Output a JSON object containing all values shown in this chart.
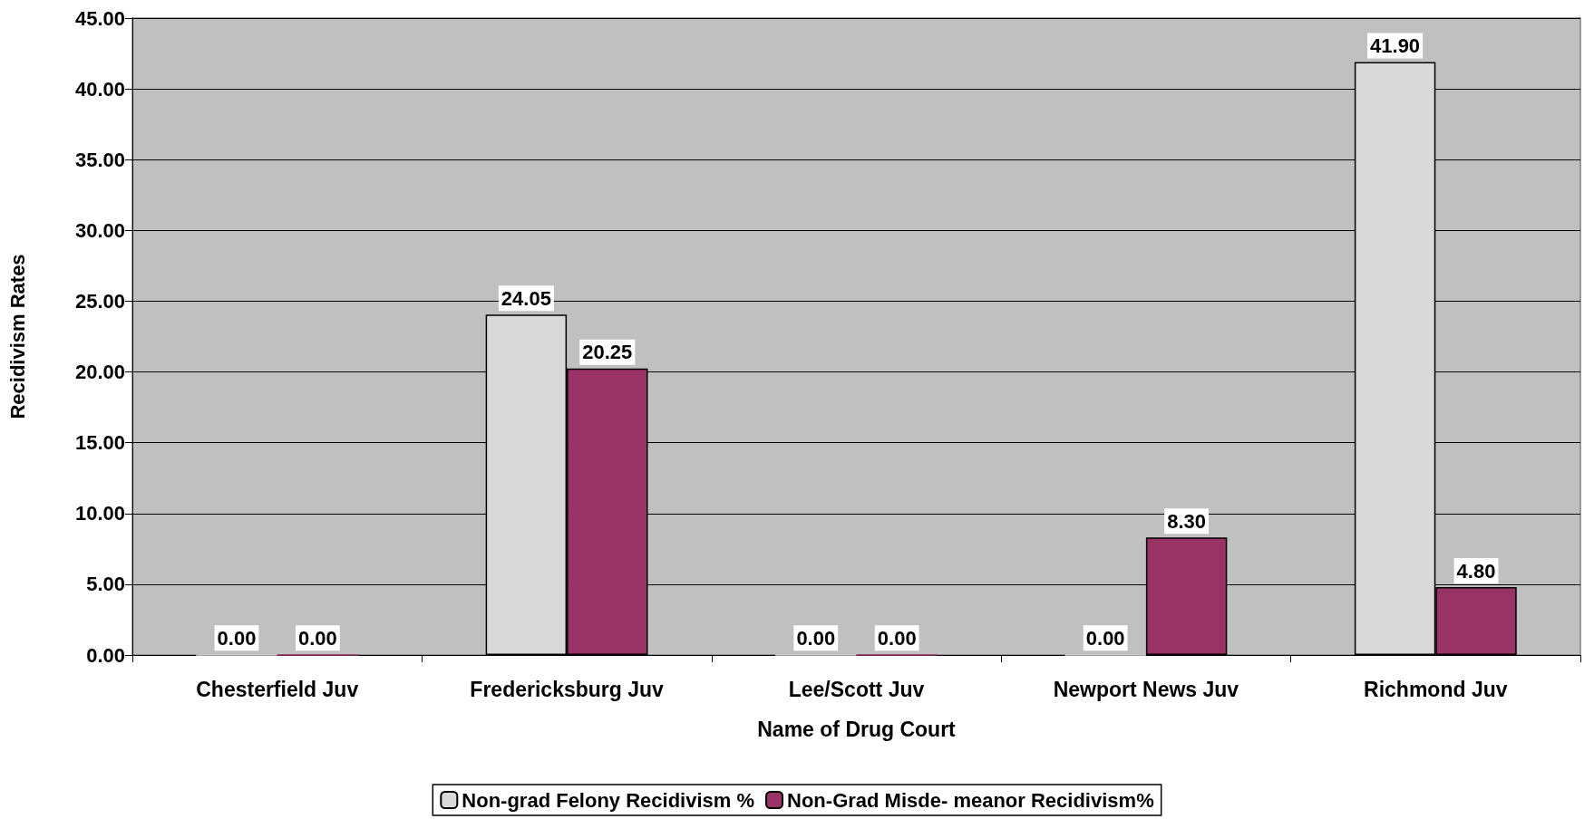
{
  "chart_data": {
    "type": "bar",
    "xlabel": "Name of Drug Court",
    "ylabel": "Recidivism Rates",
    "categories": [
      "Chesterfield Juv",
      "Fredericksburg Juv",
      "Lee/Scott Juv",
      "Newport News Juv",
      "Richmond Juv"
    ],
    "series": [
      {
        "name": "Non-grad Felony Recidivism %",
        "color": "#d9d9d9",
        "values": [
          0,
          24.05,
          0,
          0,
          41.9
        ],
        "value_labels": [
          "0.00",
          "24.05",
          "0.00",
          "0.00",
          "41.90"
        ]
      },
      {
        "name": "Non-Grad Misde- meanor Recidivism%",
        "color": "#993366",
        "values": [
          0,
          20.25,
          0,
          8.3,
          4.8
        ],
        "value_labels": [
          "0.00",
          "20.25",
          "0.00",
          "8.30",
          "4.80"
        ]
      }
    ],
    "ylim": [
      0,
      45
    ],
    "yticks": [
      {
        "value": 0,
        "label": "0.00"
      },
      {
        "value": 5,
        "label": "5.00"
      },
      {
        "value": 10,
        "label": "10.00"
      },
      {
        "value": 15,
        "label": "15.00"
      },
      {
        "value": 20,
        "label": "20.00"
      },
      {
        "value": 25,
        "label": "25.00"
      },
      {
        "value": 30,
        "label": "30.00"
      },
      {
        "value": 35,
        "label": "35.00"
      },
      {
        "value": 40,
        "label": "40.00"
      },
      {
        "value": 45,
        "label": "45.00"
      }
    ],
    "grid": "y",
    "legend": "bottom"
  }
}
